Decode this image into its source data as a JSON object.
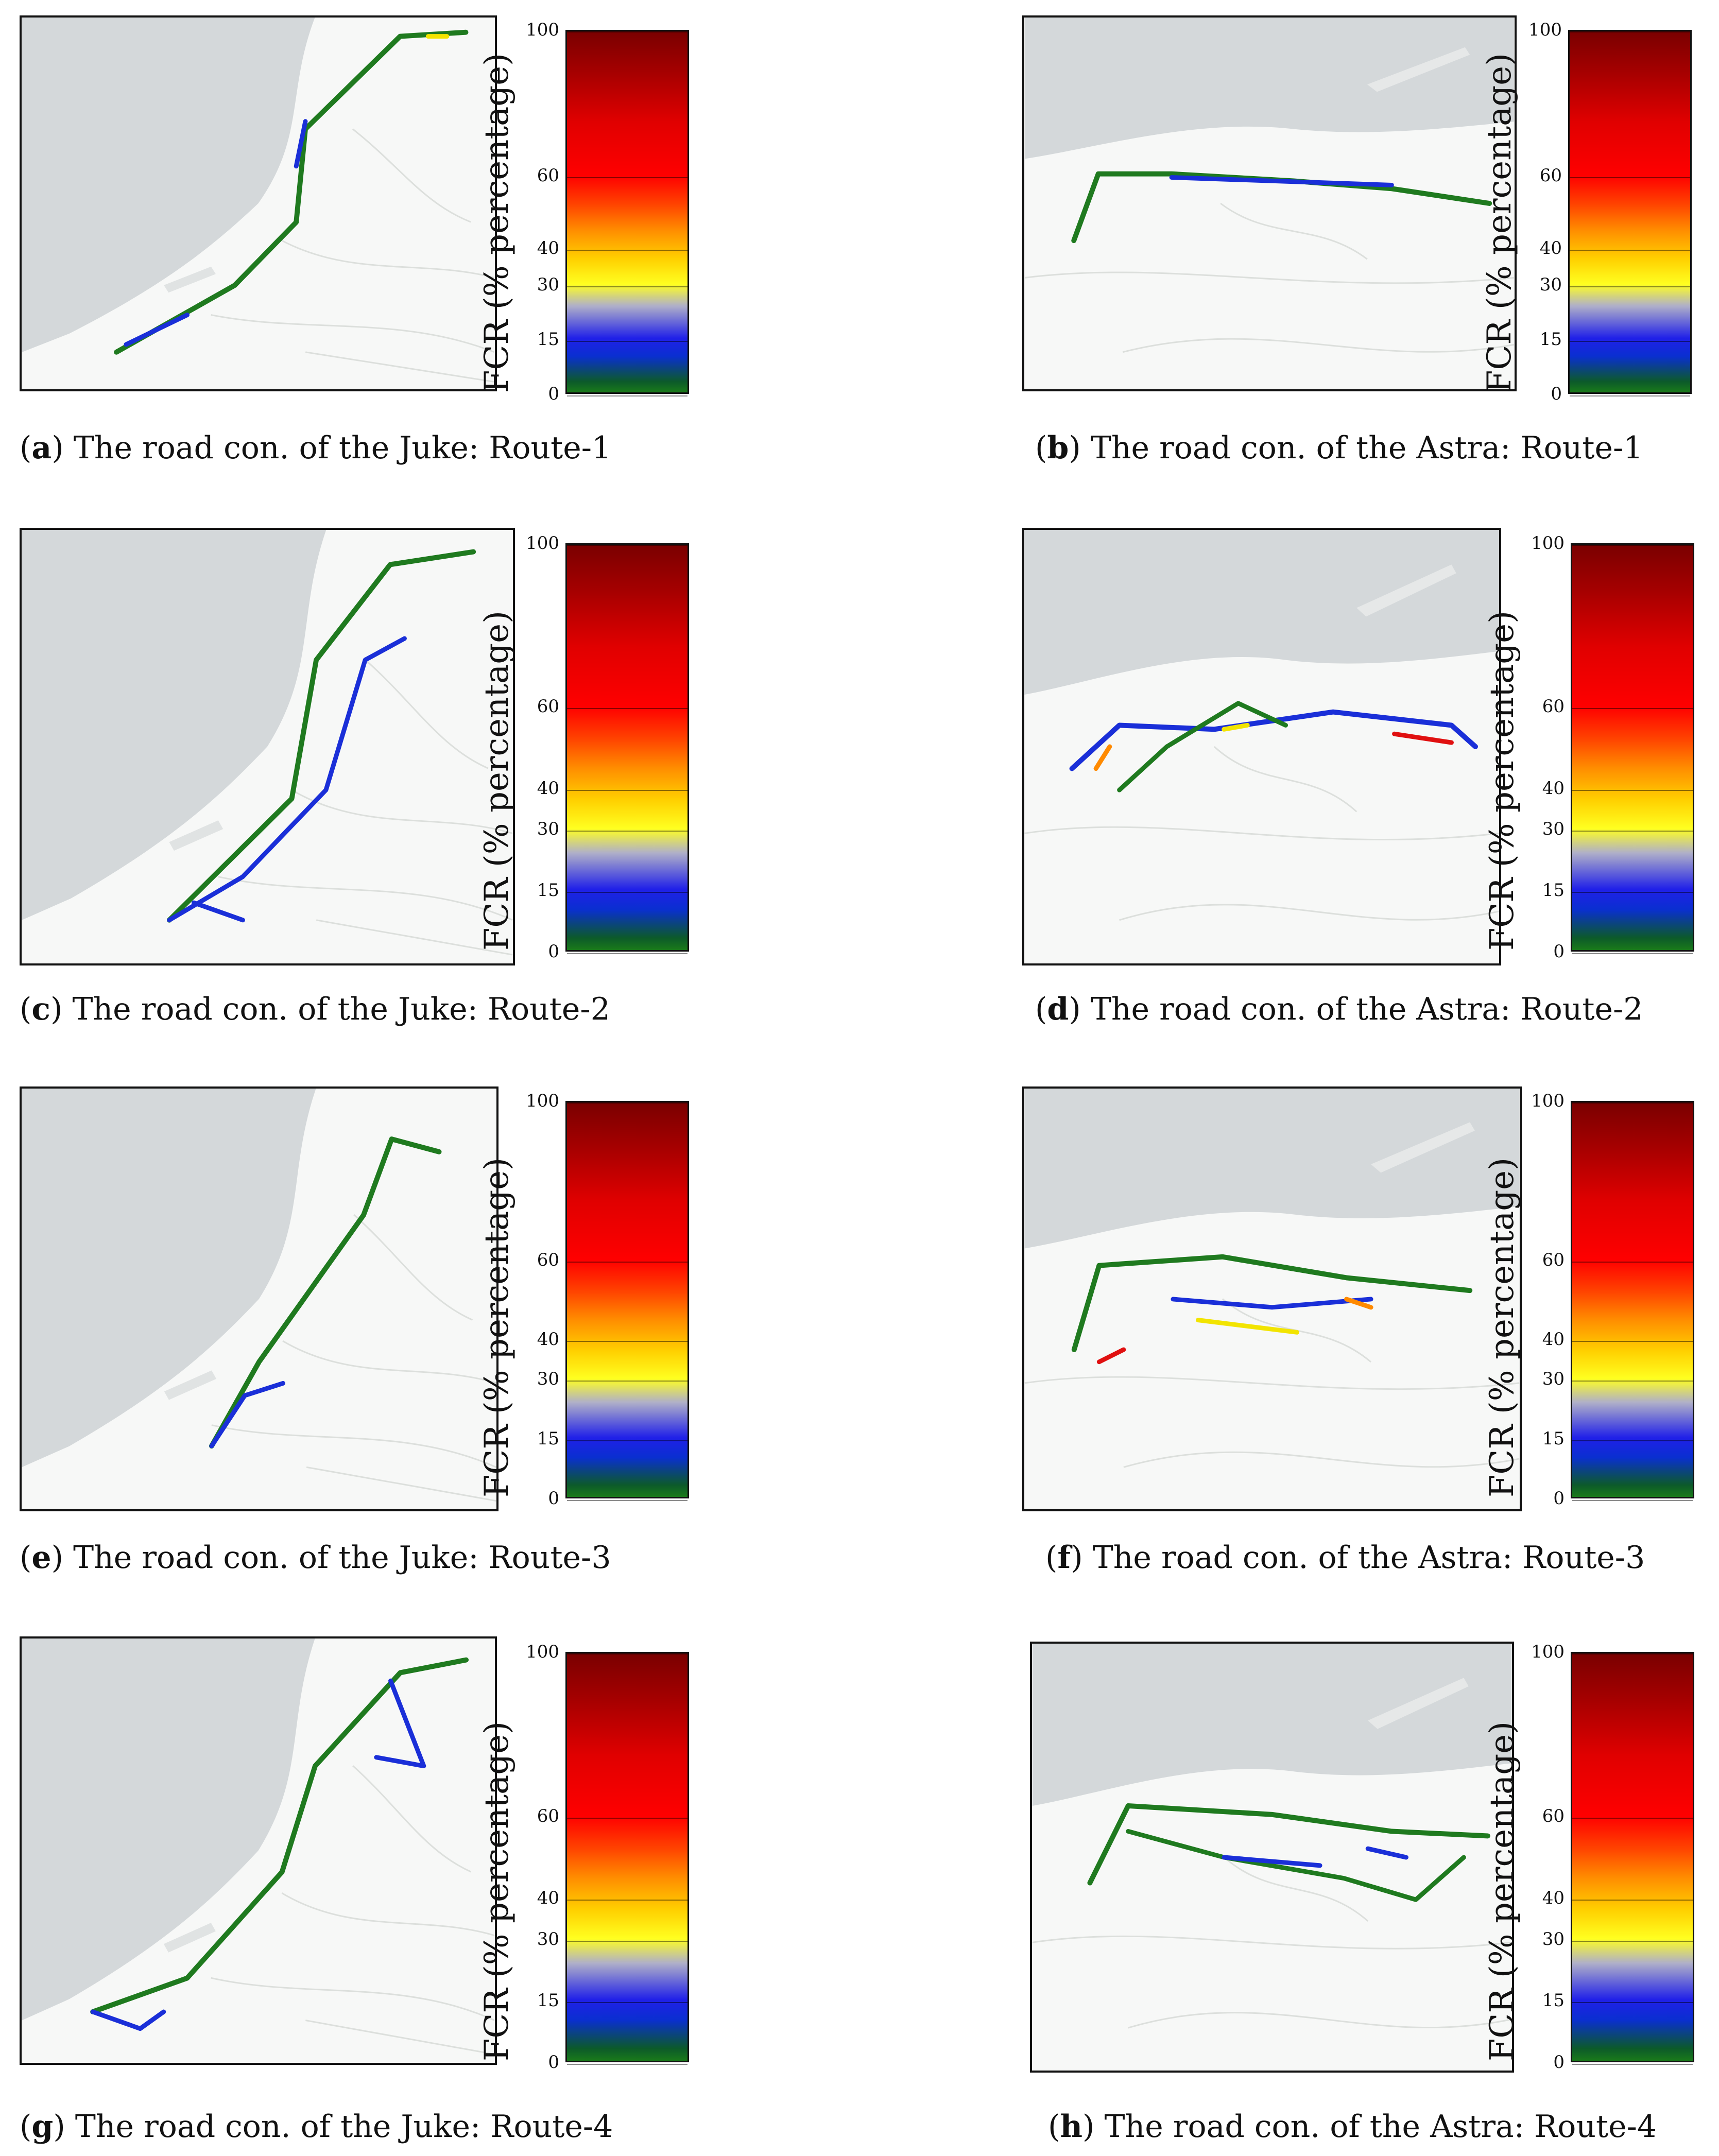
{
  "colorbar": {
    "label": "FCR (% percentage)",
    "ticks": [
      "100",
      "60",
      "40",
      "30",
      "15",
      "0"
    ],
    "tick_values": [
      100,
      60,
      40,
      30,
      15,
      0
    ]
  },
  "colors": {
    "green": "#1f7a1f",
    "blue": "#1a2fd8",
    "yellow": "#f2e400",
    "orange": "#ff8a00",
    "red": "#e01010",
    "sea": "#d4d8da",
    "land": "#f4f5f4"
  },
  "panels": [
    {
      "letter": "a",
      "caption": " The road con. of the Juke: Route-1"
    },
    {
      "letter": "b",
      "caption": " The road con. of the Astra: Route-1"
    },
    {
      "letter": "c",
      "caption": " The road con. of the Juke: Route-2"
    },
    {
      "letter": "d",
      "caption": " The road con. of the Astra: Route-2"
    },
    {
      "letter": "e",
      "caption": " The road con. of the Juke: Route-3"
    },
    {
      "letter": "f",
      "caption": " The road con. of the Astra: Route-3"
    },
    {
      "letter": "g",
      "caption": " The road con. of the Juke: Route-4"
    },
    {
      "letter": "h",
      "caption": " The road con. of the Astra: Route-4"
    }
  ]
}
